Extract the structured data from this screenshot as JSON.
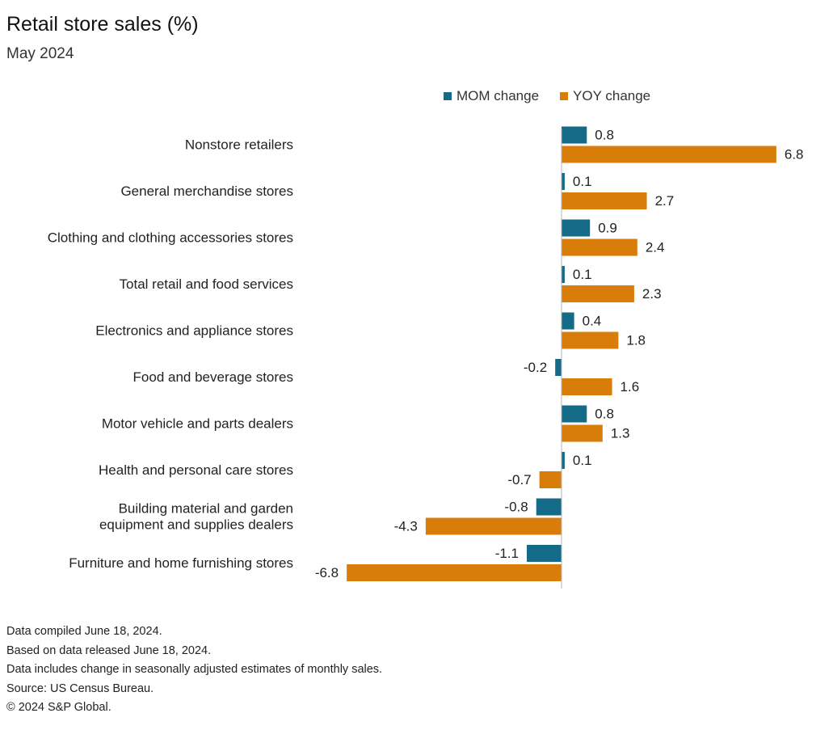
{
  "chart_data": {
    "type": "bar",
    "orientation": "horizontal",
    "title": "Retail store sales (%)",
    "subtitle": "May 2024",
    "legend_position": "top",
    "grid": false,
    "xlim": [
      -7.1,
      7.4
    ],
    "categories": [
      [
        "Nonstore retailers"
      ],
      [
        "General merchandise stores"
      ],
      [
        "Clothing and clothing accessories stores"
      ],
      [
        "Total retail and food services"
      ],
      [
        "Electronics and appliance stores"
      ],
      [
        "Food and beverage stores"
      ],
      [
        "Motor vehicle and parts dealers"
      ],
      [
        "Health and personal care stores"
      ],
      [
        "Building material and garden",
        "equipment and supplies dealers"
      ],
      [
        "Furniture and home furnishing stores"
      ]
    ],
    "series": [
      {
        "name": "MOM change",
        "color": "#136b87",
        "values": [
          0.8,
          0.1,
          0.9,
          0.1,
          0.4,
          -0.2,
          0.8,
          0.1,
          -0.8,
          -1.1
        ]
      },
      {
        "name": "YOY change",
        "color": "#d97d0a",
        "values": [
          6.8,
          2.7,
          2.4,
          2.3,
          1.8,
          1.6,
          1.3,
          -0.7,
          -4.3,
          -6.8
        ]
      }
    ]
  },
  "footnotes": [
    "Data compiled June 18, 2024.",
    "Based on data released June 18, 2024.",
    "Data includes change in seasonally adjusted estimates of monthly sales.",
    "Source: US Census Bureau.",
    "© 2024 S&P Global."
  ]
}
